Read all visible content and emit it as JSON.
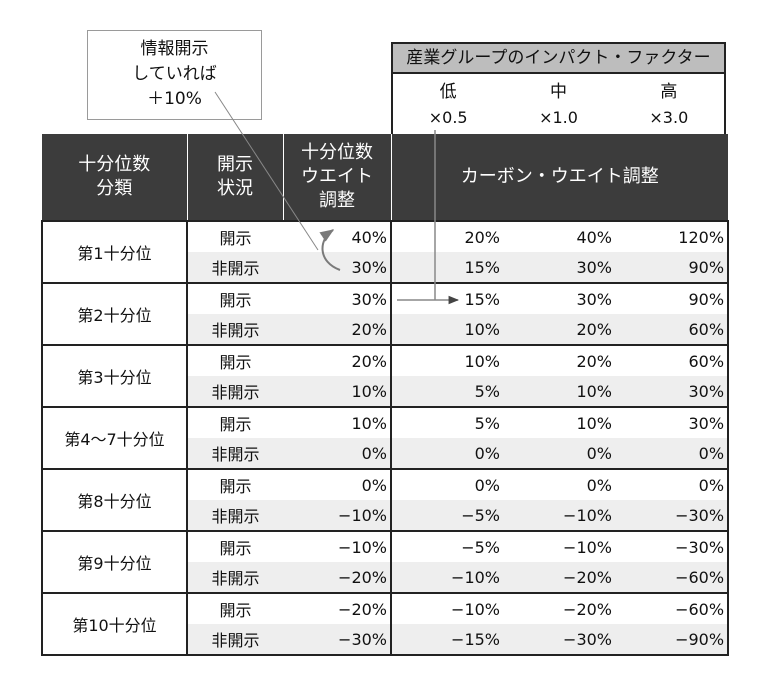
{
  "callout": {
    "lines": [
      "情報開示",
      "していれば",
      "＋10%"
    ]
  },
  "impact": {
    "title": "産業グループのインパクト・ファクター",
    "levels": [
      {
        "label": "低",
        "multiplier": "×0.5"
      },
      {
        "label": "中",
        "multiplier": "×1.0"
      },
      {
        "label": "高",
        "multiplier": "×3.0"
      }
    ]
  },
  "headers": {
    "decile": [
      "十分位数",
      "分類"
    ],
    "status": [
      "開示",
      "状況"
    ],
    "weight": [
      "十分位数",
      "ウエイト",
      "調整"
    ],
    "carbon": "カーボン・ウエイト調整"
  },
  "rows": [
    {
      "decile": "第1十分位",
      "entries": [
        {
          "status": "開示",
          "weight": "40%",
          "low": "20%",
          "mid": "40%",
          "high": "120%"
        },
        {
          "status": "非開示",
          "weight": "30%",
          "low": "15%",
          "mid": "30%",
          "high": "90%"
        }
      ]
    },
    {
      "decile": "第2十分位",
      "entries": [
        {
          "status": "開示",
          "weight": "30%",
          "low": "15%",
          "mid": "30%",
          "high": "90%"
        },
        {
          "status": "非開示",
          "weight": "20%",
          "low": "10%",
          "mid": "20%",
          "high": "60%"
        }
      ]
    },
    {
      "decile": "第3十分位",
      "entries": [
        {
          "status": "開示",
          "weight": "20%",
          "low": "10%",
          "mid": "20%",
          "high": "60%"
        },
        {
          "status": "非開示",
          "weight": "10%",
          "low": "5%",
          "mid": "10%",
          "high": "30%"
        }
      ]
    },
    {
      "decile": "第4～7十分位",
      "entries": [
        {
          "status": "開示",
          "weight": "10%",
          "low": "5%",
          "mid": "10%",
          "high": "30%"
        },
        {
          "status": "非開示",
          "weight": "0%",
          "low": "0%",
          "mid": "0%",
          "high": "0%"
        }
      ]
    },
    {
      "decile": "第8十分位",
      "entries": [
        {
          "status": "開示",
          "weight": "0%",
          "low": "0%",
          "mid": "0%",
          "high": "0%"
        },
        {
          "status": "非開示",
          "weight": "−10%",
          "low": "−5%",
          "mid": "−10%",
          "high": "−30%"
        }
      ]
    },
    {
      "decile": "第9十分位",
      "entries": [
        {
          "status": "開示",
          "weight": "−10%",
          "low": "−5%",
          "mid": "−10%",
          "high": "−30%"
        },
        {
          "status": "非開示",
          "weight": "−20%",
          "low": "−10%",
          "mid": "−20%",
          "high": "−60%"
        }
      ]
    },
    {
      "decile": "第10十分位",
      "entries": [
        {
          "status": "開示",
          "weight": "−20%",
          "low": "−10%",
          "mid": "−20%",
          "high": "−60%"
        },
        {
          "status": "非開示",
          "weight": "−30%",
          "low": "−15%",
          "mid": "−30%",
          "high": "−90%"
        }
      ]
    }
  ]
}
